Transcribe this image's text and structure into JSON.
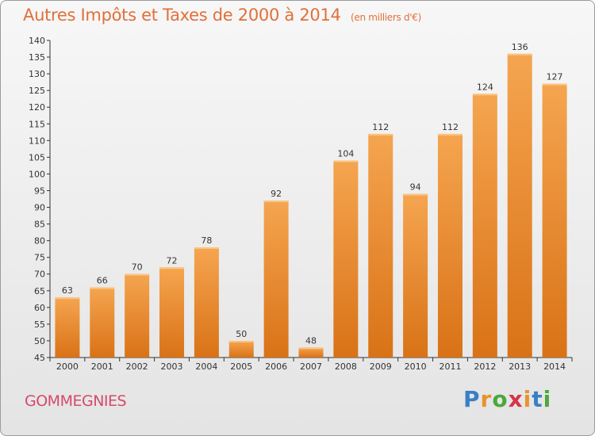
{
  "header": {
    "title": "Autres Impôts et Taxes de 2000 à 2014",
    "unit": "(en milliers d'€)"
  },
  "footer": {
    "city": "GOMMEGNIES",
    "logo": [
      "P",
      "r",
      "o",
      "x",
      "i",
      "t",
      "i"
    ]
  },
  "colors": {
    "bar_top": "#f5a550",
    "bar_bottom": "#d97216",
    "title": "#e0703a",
    "city": "#d54a6a",
    "logo": [
      "#3a7fc4",
      "#e8932c",
      "#4aa83a",
      "#d5344b",
      "#e8932c",
      "#3a7fc4",
      "#4aa83a"
    ]
  },
  "chart_data": {
    "type": "bar",
    "title": "Autres Impôts et Taxes de 2000 à 2014",
    "subtitle": "(en milliers d'€)",
    "categories": [
      "2000",
      "2001",
      "2002",
      "2003",
      "2004",
      "2005",
      "2006",
      "2007",
      "2008",
      "2009",
      "2010",
      "2011",
      "2012",
      "2013",
      "2014"
    ],
    "values": [
      63,
      66,
      70,
      72,
      78,
      50,
      92,
      48,
      104,
      112,
      94,
      112,
      124,
      136,
      127
    ],
    "ylim": [
      45,
      140
    ],
    "ytick_step": 5,
    "grid": false
  }
}
